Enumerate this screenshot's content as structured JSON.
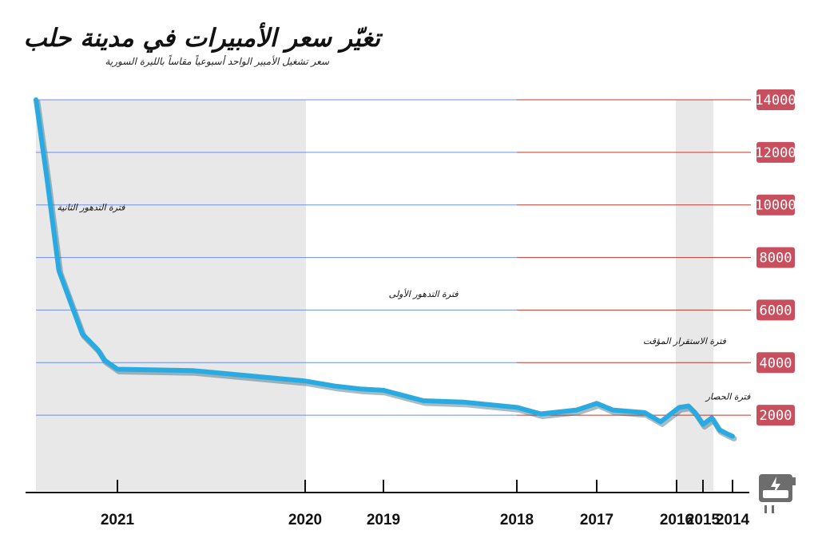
{
  "title": "تغيّر سعر الأمبيرات في مدينة حلب",
  "subtitle": "سعر تشغيل الأمبير الواحد أسبوعياً مقاساً بالليرة السورية",
  "colors": {
    "line": "#29abe2",
    "band": "#e8e8e8",
    "grid_blue": "#6f8fe6",
    "grid_red": "#c0392b",
    "label_bg": "#c8505e"
  },
  "icon": "power-meter-icon",
  "chart_data": {
    "type": "line",
    "title": "تغيّر سعر الأمبيرات في مدينة حلب",
    "subtitle": "سعر تشغيل الأمبير الواحد أسبوعياً مقاساً بالليرة السورية",
    "ylim": [
      0,
      14000
    ],
    "yticks": [
      2000,
      4000,
      6000,
      8000,
      10000,
      12000,
      14000
    ],
    "xticks": [
      "2014",
      "2015",
      "2016",
      "2017",
      "2018",
      "2019",
      "2020",
      "2021"
    ],
    "x_axis_direction": "right-to-left",
    "grid": true,
    "series": [
      {
        "x": [
          2014.0,
          2014.2,
          2014.45,
          2014.7,
          2015.0,
          2015.3,
          2015.55,
          2015.9,
          2016.2,
          2016.4,
          2016.8,
          2017.0,
          2017.25,
          2017.7,
          2018.0,
          2018.4,
          2018.7,
          2019.0,
          2019.3,
          2019.6,
          2020.0,
          2020.6,
          2021.0,
          2021.3,
          2021.45,
          2021.8,
          2022.0,
          2022.33,
          2022.6,
          2022.85
        ],
        "values": [
          1200,
          1300,
          1450,
          1900,
          1650,
          2100,
          2350,
          2300,
          1750,
          2100,
          2200,
          2450,
          2200,
          2050,
          2300,
          2500,
          2550,
          2950,
          3000,
          3100,
          3300,
          3700,
          3750,
          4100,
          4500,
          5100,
          6000,
          7500,
          11000,
          14000
        ]
      }
    ],
    "bands": [
      {
        "from": 2014.65,
        "to": 2016.01,
        "fill": "gray"
      },
      {
        "from": 2016.01,
        "to": 2018.0,
        "fill": "white"
      },
      {
        "from": 2018.0,
        "to": 2019.99,
        "fill": "white"
      },
      {
        "from": 2019.99,
        "to": 2022.9,
        "fill": "gray"
      }
    ],
    "annotations": [
      {
        "text": "فترة الحصار",
        "x": 2014.15,
        "y": 2600
      },
      {
        "text": "فترة الاستقرار المؤقت",
        "x": 2015.7,
        "y": 4700
      },
      {
        "text": "فترة التدهور الأولى",
        "x": 2018.7,
        "y": 6500
      },
      {
        "text": "فترة التدهور الثانية",
        "x": 2021.6,
        "y": 9800
      }
    ]
  }
}
